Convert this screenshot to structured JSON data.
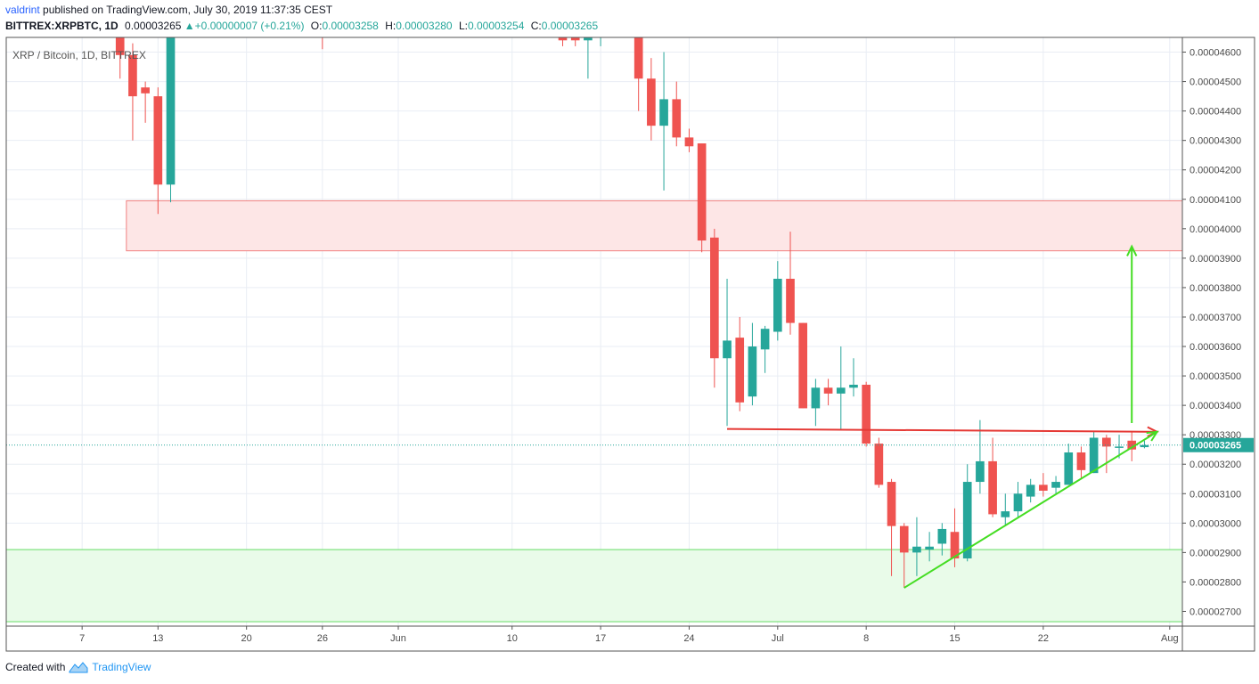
{
  "header": {
    "user": "valdrint",
    "published_text": "published on TradingView.com, July 30, 2019 11:37:35 CEST",
    "symbol": "BITTREX:XRPBTC, 1D",
    "last": "0.00003265",
    "change_arrow": "▲",
    "change": "+0.00000007 (+0.21%)",
    "o_label": "O:",
    "o": "0.00003258",
    "h_label": "H:",
    "h": "0.00003280",
    "l_label": "L:",
    "l": "0.00003254",
    "c_label": "C:",
    "c": "0.00003265"
  },
  "footer": {
    "created_with": "Created with",
    "brand": "TradingView"
  },
  "chart_data": {
    "type": "candlestick",
    "legend_label": "XRP / Bitcoin, 1D, BITTREX",
    "ylim": [
      2.65e-05,
      4.65e-05
    ],
    "y_ticks": [
      "0.00002700",
      "0.00002800",
      "0.00002900",
      "0.00003000",
      "0.00003100",
      "0.00003200",
      "0.00003300",
      "0.00003400",
      "0.00003500",
      "0.00003600",
      "0.00003700",
      "0.00003800",
      "0.00003900",
      "0.00004000",
      "0.00004100",
      "0.00004200",
      "0.00004300",
      "0.00004400",
      "0.00004500",
      "0.00004600"
    ],
    "x_ticks": [
      {
        "label": "7",
        "date": "2019-05-07"
      },
      {
        "label": "13",
        "date": "2019-05-13"
      },
      {
        "label": "20",
        "date": "2019-05-20"
      },
      {
        "label": "26",
        "date": "2019-05-26"
      },
      {
        "label": "Jun",
        "date": "2019-06-01"
      },
      {
        "label": "10",
        "date": "2019-06-10"
      },
      {
        "label": "17",
        "date": "2019-06-17"
      },
      {
        "label": "24",
        "date": "2019-06-24"
      },
      {
        "label": "Jul",
        "date": "2019-07-01"
      },
      {
        "label": "8",
        "date": "2019-07-08"
      },
      {
        "label": "15",
        "date": "2019-07-15"
      },
      {
        "label": "22",
        "date": "2019-07-22"
      },
      {
        "label": "Aug",
        "date": "2019-08-01"
      }
    ],
    "x_range": [
      "2019-05-01",
      "2019-08-02"
    ],
    "last_price_label": "0.00003265",
    "last_price": 3.265e-05,
    "candles": [
      {
        "date": "2019-05-10",
        "o": 4.76e-05,
        "h": 4.82e-05,
        "l": 4.51e-05,
        "c": 4.59e-05
      },
      {
        "date": "2019-05-11",
        "o": 4.59e-05,
        "h": 4.63e-05,
        "l": 4.3e-05,
        "c": 4.45e-05
      },
      {
        "date": "2019-05-12",
        "o": 4.48e-05,
        "h": 4.5e-05,
        "l": 4.36e-05,
        "c": 4.46e-05
      },
      {
        "date": "2019-05-13",
        "o": 4.45e-05,
        "h": 4.48e-05,
        "l": 4.05e-05,
        "c": 4.15e-05
      },
      {
        "date": "2019-05-14",
        "o": 4.15e-05,
        "h": 4.8e-05,
        "l": 4.09e-05,
        "c": 4.78e-05
      },
      {
        "date": "2019-05-26",
        "o": 4.7e-05,
        "h": 4.75e-05,
        "l": 4.61e-05,
        "c": 4.68e-05
      },
      {
        "date": "2019-06-14",
        "o": 4.68e-05,
        "h": 4.7e-05,
        "l": 4.62e-05,
        "c": 4.64e-05
      },
      {
        "date": "2019-06-15",
        "o": 4.66e-05,
        "h": 4.69e-05,
        "l": 4.62e-05,
        "c": 4.64e-05
      },
      {
        "date": "2019-06-16",
        "o": 4.64e-05,
        "h": 4.71e-05,
        "l": 4.51e-05,
        "c": 4.67e-05
      },
      {
        "date": "2019-06-17",
        "o": 4.66e-05,
        "h": 4.71e-05,
        "l": 4.62e-05,
        "c": 4.69e-05
      },
      {
        "date": "2019-06-20",
        "o": 4.69e-05,
        "h": 4.74e-05,
        "l": 4.4e-05,
        "c": 4.51e-05
      },
      {
        "date": "2019-06-21",
        "o": 4.51e-05,
        "h": 4.58e-05,
        "l": 4.3e-05,
        "c": 4.35e-05
      },
      {
        "date": "2019-06-22",
        "o": 4.35e-05,
        "h": 4.6e-05,
        "l": 4.13e-05,
        "c": 4.44e-05
      },
      {
        "date": "2019-06-23",
        "o": 4.44e-05,
        "h": 4.5e-05,
        "l": 4.28e-05,
        "c": 4.31e-05
      },
      {
        "date": "2019-06-24",
        "o": 4.31e-05,
        "h": 4.34e-05,
        "l": 4.26e-05,
        "c": 4.28e-05
      },
      {
        "date": "2019-06-25",
        "o": 4.29e-05,
        "h": 4.29e-05,
        "l": 3.92e-05,
        "c": 3.96e-05
      },
      {
        "date": "2019-06-26",
        "o": 3.97e-05,
        "h": 4e-05,
        "l": 3.46e-05,
        "c": 3.56e-05
      },
      {
        "date": "2019-06-27",
        "o": 3.56e-05,
        "h": 3.83e-05,
        "l": 3.33e-05,
        "c": 3.62e-05
      },
      {
        "date": "2019-06-28",
        "o": 3.63e-05,
        "h": 3.7e-05,
        "l": 3.38e-05,
        "c": 3.41e-05
      },
      {
        "date": "2019-06-29",
        "o": 3.43e-05,
        "h": 3.68e-05,
        "l": 3.4e-05,
        "c": 3.6e-05
      },
      {
        "date": "2019-06-30",
        "o": 3.59e-05,
        "h": 3.67e-05,
        "l": 3.51e-05,
        "c": 3.66e-05
      },
      {
        "date": "2019-07-01",
        "o": 3.65e-05,
        "h": 3.89e-05,
        "l": 3.62e-05,
        "c": 3.83e-05
      },
      {
        "date": "2019-07-02",
        "o": 3.83e-05,
        "h": 3.99e-05,
        "l": 3.64e-05,
        "c": 3.68e-05
      },
      {
        "date": "2019-07-03",
        "o": 3.68e-05,
        "h": 3.68e-05,
        "l": 3.39e-05,
        "c": 3.39e-05
      },
      {
        "date": "2019-07-04",
        "o": 3.39e-05,
        "h": 3.49e-05,
        "l": 3.33e-05,
        "c": 3.46e-05
      },
      {
        "date": "2019-07-05",
        "o": 3.46e-05,
        "h": 3.49e-05,
        "l": 3.4e-05,
        "c": 3.44e-05
      },
      {
        "date": "2019-07-06",
        "o": 3.44e-05,
        "h": 3.6e-05,
        "l": 3.32e-05,
        "c": 3.46e-05
      },
      {
        "date": "2019-07-07",
        "o": 3.46e-05,
        "h": 3.56e-05,
        "l": 3.43e-05,
        "c": 3.47e-05
      },
      {
        "date": "2019-07-08",
        "o": 3.47e-05,
        "h": 3.48e-05,
        "l": 3.26e-05,
        "c": 3.27e-05
      },
      {
        "date": "2019-07-09",
        "o": 3.27e-05,
        "h": 3.29e-05,
        "l": 3.12e-05,
        "c": 3.13e-05
      },
      {
        "date": "2019-07-10",
        "o": 3.14e-05,
        "h": 3.15e-05,
        "l": 2.82e-05,
        "c": 2.99e-05
      },
      {
        "date": "2019-07-11",
        "o": 2.99e-05,
        "h": 3e-05,
        "l": 2.78e-05,
        "c": 2.9e-05
      },
      {
        "date": "2019-07-12",
        "o": 2.9e-05,
        "h": 3.02e-05,
        "l": 2.82e-05,
        "c": 2.92e-05
      },
      {
        "date": "2019-07-13",
        "o": 2.91e-05,
        "h": 2.97e-05,
        "l": 2.87e-05,
        "c": 2.92e-05
      },
      {
        "date": "2019-07-14",
        "o": 2.93e-05,
        "h": 3e-05,
        "l": 2.89e-05,
        "c": 2.98e-05
      },
      {
        "date": "2019-07-15",
        "o": 2.97e-05,
        "h": 3.05e-05,
        "l": 2.85e-05,
        "c": 2.88e-05
      },
      {
        "date": "2019-07-16",
        "o": 2.88e-05,
        "h": 3.2e-05,
        "l": 2.87e-05,
        "c": 3.14e-05
      },
      {
        "date": "2019-07-17",
        "o": 3.14e-05,
        "h": 3.35e-05,
        "l": 3.1e-05,
        "c": 3.21e-05
      },
      {
        "date": "2019-07-18",
        "o": 3.21e-05,
        "h": 3.29e-05,
        "l": 3.02e-05,
        "c": 3.03e-05
      },
      {
        "date": "2019-07-19",
        "o": 3.02e-05,
        "h": 3.1e-05,
        "l": 2.99e-05,
        "c": 3.04e-05
      },
      {
        "date": "2019-07-20",
        "o": 3.04e-05,
        "h": 3.14e-05,
        "l": 3.02e-05,
        "c": 3.1e-05
      },
      {
        "date": "2019-07-21",
        "o": 3.09e-05,
        "h": 3.15e-05,
        "l": 3.07e-05,
        "c": 3.13e-05
      },
      {
        "date": "2019-07-22",
        "o": 3.13e-05,
        "h": 3.17e-05,
        "l": 3.09e-05,
        "c": 3.11e-05
      },
      {
        "date": "2019-07-23",
        "o": 3.12e-05,
        "h": 3.16e-05,
        "l": 3.1e-05,
        "c": 3.14e-05
      },
      {
        "date": "2019-07-24",
        "o": 3.13e-05,
        "h": 3.27e-05,
        "l": 3.13e-05,
        "c": 3.24e-05
      },
      {
        "date": "2019-07-25",
        "o": 3.24e-05,
        "h": 3.26e-05,
        "l": 3.15e-05,
        "c": 3.18e-05
      },
      {
        "date": "2019-07-26",
        "o": 3.17e-05,
        "h": 3.31e-05,
        "l": 3.17e-05,
        "c": 3.29e-05
      },
      {
        "date": "2019-07-27",
        "o": 3.29e-05,
        "h": 3.3e-05,
        "l": 3.17e-05,
        "c": 3.26e-05
      },
      {
        "date": "2019-07-28",
        "o": 3.26e-05,
        "h": 3.3e-05,
        "l": 3.22e-05,
        "c": 3.26e-05
      },
      {
        "date": "2019-07-29",
        "o": 3.28e-05,
        "h": 3.31e-05,
        "l": 3.21e-05,
        "c": 3.25e-05
      },
      {
        "date": "2019-07-30",
        "o": 3.258e-05,
        "h": 3.28e-05,
        "l": 3.254e-05,
        "c": 3.265e-05
      }
    ],
    "zones": [
      {
        "name": "resistance-zone",
        "from_date": "2019-05-11",
        "y_low": 3.925e-05,
        "y_high": 4.095e-05,
        "fill": "#fde6e6",
        "stroke": "#f08080"
      },
      {
        "name": "support-zone",
        "from_date": "2019-05-01",
        "y_low": 2.665e-05,
        "y_high": 2.91e-05,
        "fill": "#e9fbe9",
        "stroke": "#66dd66"
      }
    ],
    "drawings": [
      {
        "name": "resistance-line",
        "color": "#e53935",
        "p1": [
          "2019-06-27",
          3.32e-05
        ],
        "p2": [
          "2019-07-31",
          3.31e-05
        ],
        "arrow": true
      },
      {
        "name": "ascending-trendline",
        "color": "#44dd22",
        "p1": [
          "2019-07-11",
          2.78e-05
        ],
        "p2": [
          "2019-07-31",
          3.31e-05
        ],
        "arrow": true
      },
      {
        "name": "target-arrow",
        "color": "#44dd22",
        "p1": [
          "2019-07-29",
          3.34e-05
        ],
        "p2": [
          "2019-07-29",
          3.94e-05
        ],
        "arrow": true
      }
    ],
    "colors": {
      "up": "#26a69a",
      "down": "#ef5350",
      "grid": "#e9edf4",
      "last_price": "#26a69a"
    }
  }
}
